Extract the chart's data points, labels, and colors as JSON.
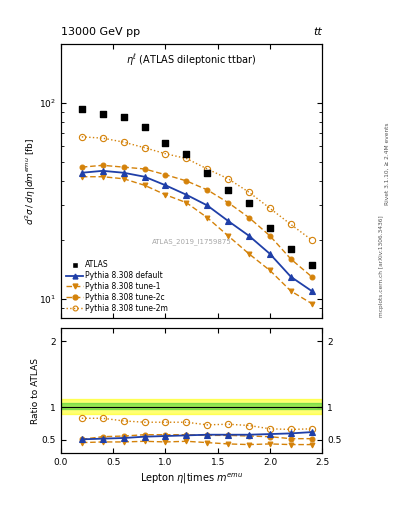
{
  "title_top": "13000 GeV pp",
  "title_top_right": "tt",
  "plot_label": "ηℓ (ATLAS dileptonic ttbar)",
  "watermark": "ATLAS_2019_I1759875",
  "right_label": "Rivet 3.1.10, ≥ 2.4M events",
  "right_label2": "mcplots.cern.ch [arXiv:1306.3436]",
  "xlim": [
    0,
    2.5
  ],
  "ylim_main": [
    8,
    200
  ],
  "ylim_ratio": [
    0.3,
    2.2
  ],
  "x_atlas": [
    0.2,
    0.4,
    0.6,
    0.8,
    1.0,
    1.2,
    1.4,
    1.6,
    1.8,
    2.0,
    2.2,
    2.4
  ],
  "y_atlas": [
    93,
    88,
    85,
    75,
    62,
    55,
    44,
    36,
    31,
    23,
    18,
    15
  ],
  "x_default": [
    0.2,
    0.4,
    0.6,
    0.8,
    1.0,
    1.2,
    1.4,
    1.6,
    1.8,
    2.0,
    2.2,
    2.4
  ],
  "y_default": [
    44,
    45,
    44,
    42,
    38,
    34,
    30,
    25,
    21,
    17,
    13,
    11
  ],
  "x_tune1": [
    0.2,
    0.4,
    0.6,
    0.8,
    1.0,
    1.2,
    1.4,
    1.6,
    1.8,
    2.0,
    2.2,
    2.4
  ],
  "y_tune1": [
    42,
    42,
    41,
    38,
    34,
    31,
    26,
    21,
    17,
    14,
    11,
    9.5
  ],
  "x_tune2c": [
    0.2,
    0.4,
    0.6,
    0.8,
    1.0,
    1.2,
    1.4,
    1.6,
    1.8,
    2.0,
    2.2,
    2.4
  ],
  "y_tune2c": [
    47,
    48,
    47,
    46,
    43,
    40,
    36,
    31,
    26,
    21,
    16,
    13
  ],
  "x_tune2m": [
    0.2,
    0.4,
    0.6,
    0.8,
    1.0,
    1.2,
    1.4,
    1.6,
    1.8,
    2.0,
    2.2,
    2.4
  ],
  "y_tune2m": [
    67,
    66,
    63,
    59,
    55,
    52,
    46,
    41,
    35,
    29,
    24,
    20
  ],
  "ratio_default": [
    0.51,
    0.52,
    0.53,
    0.55,
    0.56,
    0.57,
    0.58,
    0.58,
    0.58,
    0.59,
    0.6,
    0.62
  ],
  "ratio_tune1": [
    0.46,
    0.47,
    0.47,
    0.48,
    0.47,
    0.48,
    0.46,
    0.44,
    0.43,
    0.44,
    0.43,
    0.43
  ],
  "ratio_tune2c": [
    0.51,
    0.55,
    0.56,
    0.58,
    0.58,
    0.58,
    0.57,
    0.57,
    0.56,
    0.55,
    0.52,
    0.52
  ],
  "ratio_tune2m": [
    0.83,
    0.83,
    0.79,
    0.77,
    0.77,
    0.77,
    0.73,
    0.74,
    0.72,
    0.67,
    0.66,
    0.67
  ],
  "color_default": "#1f3fa8",
  "color_orange": "#d4820a",
  "band_green_range": [
    0.97,
    1.07
  ],
  "band_yellow_range": [
    0.9,
    1.12
  ]
}
